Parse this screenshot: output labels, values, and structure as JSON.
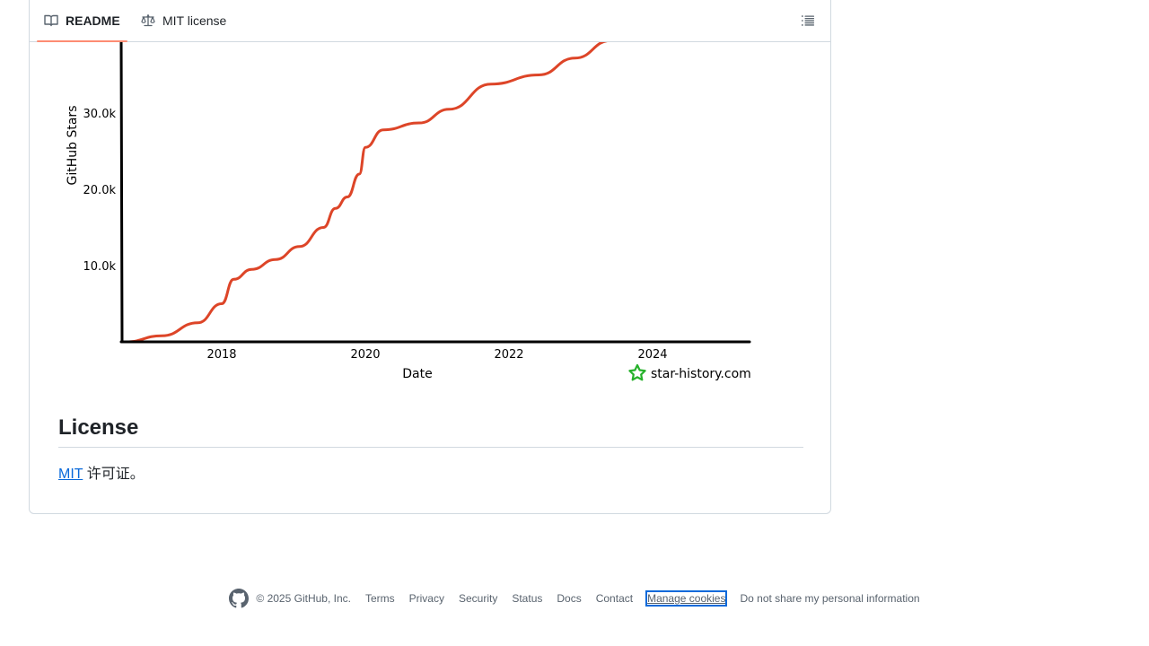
{
  "tabs": [
    {
      "label": "README",
      "icon": "book-icon",
      "active": true
    },
    {
      "label": "MIT license",
      "icon": "law-icon",
      "active": false
    }
  ],
  "outline_icon": "list-unordered-icon",
  "chart_data": {
    "type": "line",
    "xlabel": "Date",
    "ylabel": "GitHub Stars",
    "watermark": "star-history.com",
    "x_ticks": [
      "2018",
      "2020",
      "2022",
      "2024"
    ],
    "y_ticks": [
      "10.0k",
      "20.0k",
      "30.0k"
    ],
    "line_color": "#dd4528",
    "series": [
      {
        "x": [
          "2016-09",
          "2017-03",
          "2017-09",
          "2018-01",
          "2018-03",
          "2018-06",
          "2018-10",
          "2019-02",
          "2019-06",
          "2019-08",
          "2019-10",
          "2019-12",
          "2020-01",
          "2020-04",
          "2020-10",
          "2021-03",
          "2021-10",
          "2022-06",
          "2022-12",
          "2023-06",
          "2023-09"
        ],
        "y": [
          0,
          800,
          2500,
          5000,
          8200,
          9500,
          10800,
          12500,
          15000,
          17500,
          19000,
          22000,
          25500,
          27800,
          28700,
          30500,
          33800,
          35000,
          37200,
          39500,
          40500
        ]
      }
    ]
  },
  "license": {
    "heading": "License",
    "link_text": "MIT",
    "rest_text": " 许可证。"
  },
  "footer": {
    "logo_icon": "github-mark-icon",
    "copyright": "© 2025 GitHub, Inc.",
    "links": [
      "Terms",
      "Privacy",
      "Security",
      "Status",
      "Docs",
      "Contact",
      "Manage cookies",
      "Do not share my personal information"
    ]
  }
}
